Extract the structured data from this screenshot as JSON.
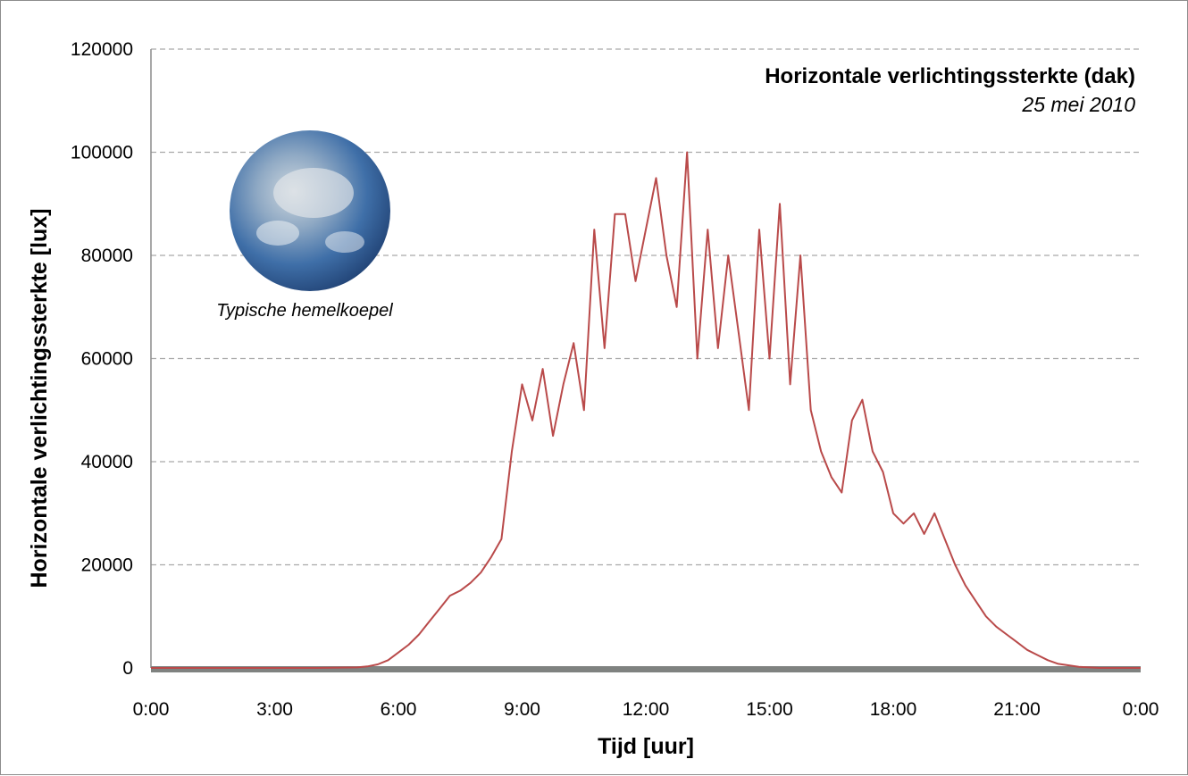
{
  "chart_data": {
    "type": "line",
    "title": "Horizontale verlichtingssterkte (dak)",
    "subtitle": "25 mei 2010",
    "xlabel": "Tijd [uur]",
    "ylabel": "Horizontale verlichtingssterkte [lux]",
    "x_ticks": [
      "0:00",
      "3:00",
      "6:00",
      "9:00",
      "12:00",
      "15:00",
      "18:00",
      "21:00",
      "0:00"
    ],
    "y_ticks": [
      "0",
      "20000",
      "40000",
      "60000",
      "80000",
      "100000",
      "120000"
    ],
    "xlim": [
      0,
      24
    ],
    "ylim": [
      0,
      120000
    ],
    "grid": "horizontal dashed",
    "series_color": "#b94a4a",
    "series": [
      {
        "x": [
          0,
          1,
          2,
          3,
          4,
          5,
          5.25,
          5.5,
          5.75,
          6,
          6.25,
          6.5,
          6.75,
          7,
          7.25,
          7.5,
          7.75,
          8,
          8.25,
          8.5,
          8.75,
          9,
          9.25,
          9.5,
          9.75,
          10,
          10.25,
          10.5,
          10.75,
          11,
          11.25,
          11.5,
          11.75,
          12,
          12.25,
          12.5,
          12.75,
          13,
          13.25,
          13.5,
          13.75,
          14,
          14.25,
          14.5,
          14.75,
          15,
          15.25,
          15.5,
          15.75,
          16,
          16.25,
          16.5,
          16.75,
          17,
          17.25,
          17.5,
          17.75,
          18,
          18.25,
          18.5,
          18.75,
          19,
          19.25,
          19.5,
          19.75,
          20,
          20.25,
          20.5,
          20.75,
          21,
          21.25,
          21.5,
          21.75,
          22,
          22.5,
          23,
          24
        ],
        "y": [
          0,
          0,
          0,
          0,
          0,
          100,
          300,
          700,
          1500,
          3000,
          4500,
          6500,
          9000,
          11500,
          14000,
          15000,
          16500,
          18500,
          21500,
          25000,
          42000,
          55000,
          48000,
          58000,
          45000,
          55000,
          63000,
          50000,
          85000,
          62000,
          88000,
          88000,
          75000,
          85000,
          95000,
          80000,
          70000,
          100000,
          60000,
          85000,
          62000,
          80000,
          65000,
          50000,
          85000,
          60000,
          90000,
          55000,
          80000,
          50000,
          42000,
          37000,
          34000,
          48000,
          52000,
          42000,
          38000,
          30000,
          28000,
          30000,
          26000,
          30000,
          25000,
          20000,
          16000,
          13000,
          10000,
          8000,
          6500,
          5000,
          3500,
          2500,
          1500,
          800,
          200,
          0,
          0
        ]
      }
    ],
    "inset": {
      "caption": "Typische hemelkoepel",
      "icon": "sky-dome-image"
    }
  }
}
